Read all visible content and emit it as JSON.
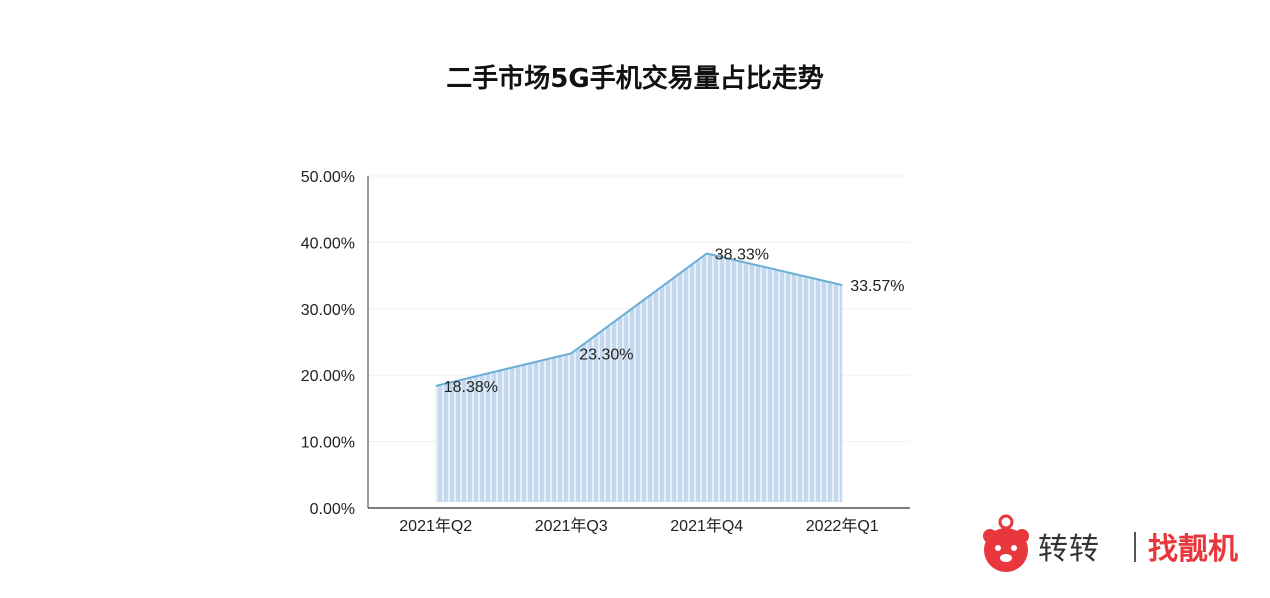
{
  "chart_data": {
    "type": "area",
    "title": "二手市场5G手机交易量占比走势",
    "categories": [
      "2021年Q2",
      "2021年Q3",
      "2021年Q4",
      "2022年Q1"
    ],
    "values": [
      18.38,
      23.3,
      38.33,
      33.57
    ],
    "data_labels": [
      "18.38%",
      "23.30%",
      "38.33%",
      "33.57%"
    ],
    "y_ticks": [
      "0.00%",
      "10.00%",
      "20.00%",
      "30.00%",
      "40.00%",
      "50.00%"
    ],
    "ylim": [
      0,
      50
    ],
    "grid": true,
    "legend": "none",
    "colors": {
      "line": "#6aaed6",
      "fill": "#c5d9ee",
      "fill_stripe": "#ffffff"
    }
  },
  "brand": {
    "logo_icon": "bear-face-icon",
    "name": "转转",
    "slogan": "找靓机",
    "accent": "#e8383d"
  }
}
